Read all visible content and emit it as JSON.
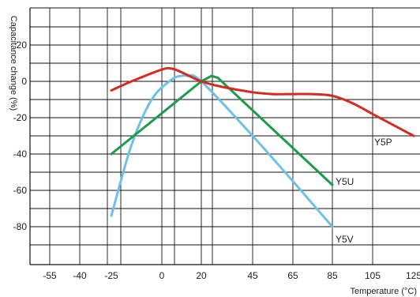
{
  "chart_data": {
    "type": "line",
    "xlabel": "Temperature (°C)",
    "ylabel": "Capacitance change (%)",
    "x_ticks": [
      "-55",
      "-40",
      "-25",
      "0",
      "20",
      "45",
      "65",
      "85",
      "105",
      "125"
    ],
    "y_ticks": [
      "20",
      "0",
      "-20",
      "-40",
      "-60",
      "-80"
    ],
    "ylim": [
      -100,
      40
    ],
    "grid": true,
    "colors": {
      "grid": "#111111",
      "Y5P": "#d42a20",
      "Y5U": "#1f9a4a",
      "Y5V": "#6ec0ea"
    },
    "series": [
      {
        "name": "Y5P",
        "points": [
          [
            -25,
            -5
          ],
          [
            -15,
            0
          ],
          [
            0,
            6.5
          ],
          [
            5,
            7
          ],
          [
            10,
            5
          ],
          [
            20,
            0
          ],
          [
            30,
            -3
          ],
          [
            45,
            -6
          ],
          [
            55,
            -7
          ],
          [
            65,
            -7
          ],
          [
            75,
            -7
          ],
          [
            85,
            -8
          ],
          [
            95,
            -12
          ],
          [
            105,
            -18
          ],
          [
            115,
            -24
          ],
          [
            125,
            -30
          ]
        ]
      },
      {
        "name": "Y5U",
        "points": [
          [
            -25,
            -40
          ],
          [
            20,
            0
          ],
          [
            25,
            3
          ],
          [
            28,
            2
          ],
          [
            85,
            -57
          ]
        ]
      },
      {
        "name": "Y5V",
        "points": [
          [
            -25,
            -74
          ],
          [
            -15,
            -35
          ],
          [
            -5,
            -10
          ],
          [
            5,
            1
          ],
          [
            10,
            3
          ],
          [
            13,
            3
          ],
          [
            20,
            0
          ],
          [
            45,
            -30
          ],
          [
            65,
            -55
          ],
          [
            85,
            -80
          ]
        ]
      }
    ]
  }
}
